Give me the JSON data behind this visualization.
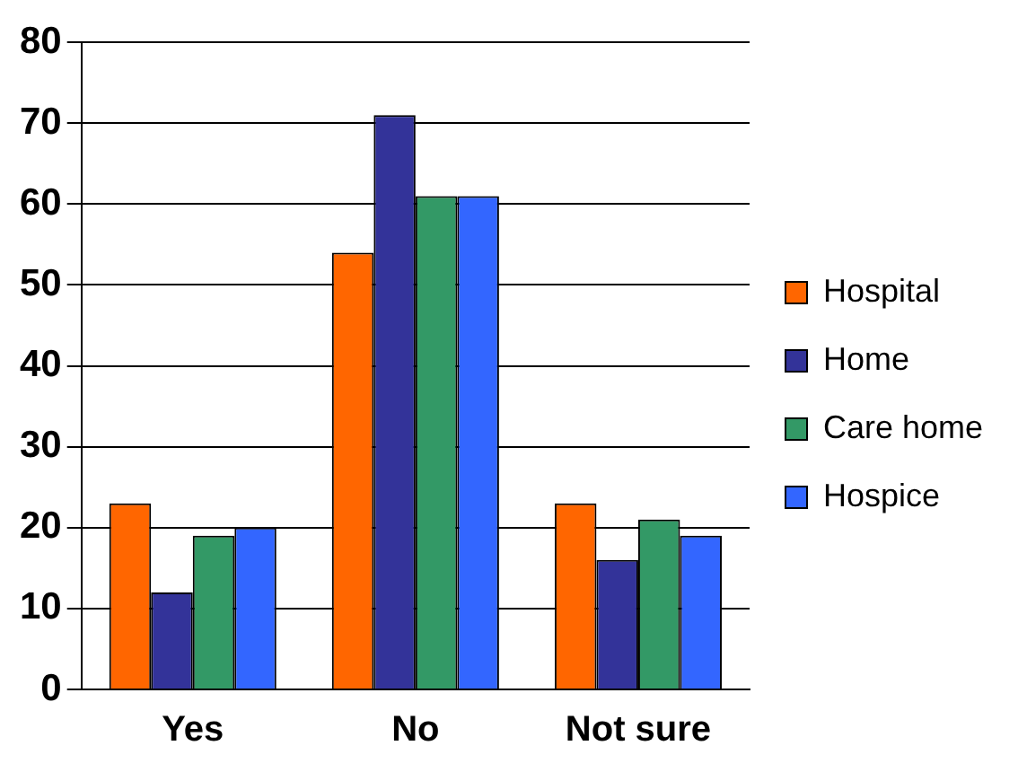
{
  "chart_data": {
    "type": "bar",
    "categories": [
      "Yes",
      "No",
      "Not sure"
    ],
    "series": [
      {
        "name": "Hospital",
        "color": "#ff6600",
        "values": [
          23,
          54,
          23
        ]
      },
      {
        "name": "Home",
        "color": "#333399",
        "values": [
          12,
          71,
          16
        ]
      },
      {
        "name": "Care home",
        "color": "#339966",
        "values": [
          19,
          61,
          21
        ]
      },
      {
        "name": "Hospice",
        "color": "#3366ff",
        "values": [
          20,
          61,
          19
        ]
      }
    ],
    "ylim": [
      0,
      80
    ],
    "yticks": [
      0,
      10,
      20,
      30,
      40,
      50,
      60,
      70,
      80
    ],
    "grid": "y",
    "legend": "right"
  }
}
